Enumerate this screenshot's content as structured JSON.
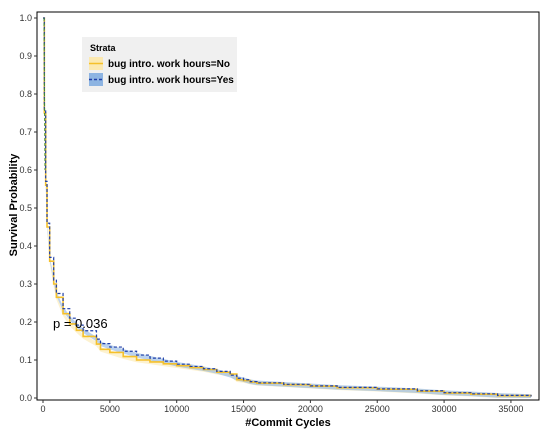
{
  "chart_data": {
    "type": "line",
    "xlabel": "#Commit Cycles",
    "ylabel": "Survival Probability",
    "xlim": [
      0,
      36800
    ],
    "ylim": [
      0,
      1.0
    ],
    "x_ticks": [
      0,
      5000,
      10000,
      15000,
      20000,
      25000,
      30000,
      35000
    ],
    "y_ticks": [
      0.0,
      0.1,
      0.2,
      0.3,
      0.4,
      0.5,
      0.6,
      0.7,
      0.8,
      0.9,
      1.0
    ],
    "x_tick_labels": [
      "0",
      "5000",
      "10000",
      "15000",
      "20000",
      "25000",
      "30000",
      "35000"
    ],
    "y_tick_labels": [
      "0.0",
      "0.1",
      "0.2",
      "0.3",
      "0.4",
      "0.5",
      "0.6",
      "0.7",
      "0.8",
      "0.9",
      "1.0"
    ],
    "grid": false,
    "legend": {
      "title": "Strata",
      "placement": "top-left"
    },
    "annotation": "p = 0.036",
    "series": [
      {
        "name": "bug intro. work hours=No",
        "color": "#F5C02A",
        "band_color": "#FCE9B0",
        "line_style": "solid",
        "x": [
          0,
          100,
          200,
          300,
          500,
          800,
          1000,
          1500,
          2000,
          2500,
          3000,
          4000,
          4300,
          5000,
          6000,
          7000,
          8000,
          9000,
          10000,
          11000,
          12000,
          13000,
          14000,
          14500,
          15000,
          15500,
          16000,
          18000,
          20000,
          22000,
          25000,
          28000,
          30000,
          32000,
          34000,
          36500
        ],
        "y": [
          1.0,
          0.75,
          0.56,
          0.45,
          0.36,
          0.3,
          0.265,
          0.222,
          0.195,
          0.178,
          0.162,
          0.142,
          0.128,
          0.12,
          0.109,
          0.1,
          0.095,
          0.09,
          0.085,
          0.08,
          0.075,
          0.068,
          0.063,
          0.048,
          0.046,
          0.042,
          0.039,
          0.035,
          0.031,
          0.027,
          0.023,
          0.018,
          0.013,
          0.01,
          0.006,
          0.004
        ]
      },
      {
        "name": "bug intro. work hours=Yes",
        "color": "#1F3FA8",
        "band_color": "#8DB4E2",
        "line_style": "dashed",
        "x": [
          0,
          100,
          200,
          300,
          500,
          800,
          1000,
          1500,
          2000,
          2500,
          3000,
          4000,
          4300,
          5000,
          6000,
          7000,
          8000,
          9000,
          10000,
          11000,
          12000,
          13000,
          14000,
          14500,
          15000,
          15500,
          16000,
          18000,
          20000,
          22000,
          25000,
          28000,
          30000,
          32000,
          34000,
          36500
        ],
        "y": [
          1.0,
          0.76,
          0.57,
          0.46,
          0.37,
          0.31,
          0.275,
          0.235,
          0.21,
          0.192,
          0.177,
          0.155,
          0.143,
          0.134,
          0.123,
          0.113,
          0.105,
          0.097,
          0.089,
          0.083,
          0.077,
          0.07,
          0.06,
          0.052,
          0.048,
          0.043,
          0.04,
          0.036,
          0.032,
          0.028,
          0.024,
          0.019,
          0.014,
          0.011,
          0.007,
          0.004
        ]
      }
    ]
  }
}
